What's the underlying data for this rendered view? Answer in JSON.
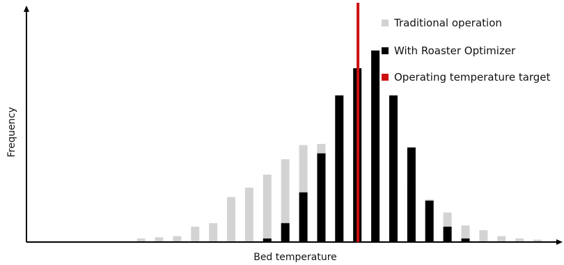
{
  "chart_data": {
    "type": "bar",
    "title": "",
    "xlabel": "Bed temperature",
    "ylabel": "Frequency",
    "ylim": [
      0,
      100
    ],
    "x_positions": 27,
    "series": [
      {
        "name": "Traditional operation",
        "color": "#d3d3d3",
        "values": [
          0,
          0,
          0,
          1.5,
          2,
          2.5,
          6.5,
          8,
          19,
          23,
          28.5,
          35,
          41,
          41.5,
          37.5,
          37.5,
          34,
          30,
          25.5,
          18,
          12.5,
          7,
          5,
          2.5,
          1.5,
          1,
          0.5
        ]
      },
      {
        "name": "With Roaster Optimizer",
        "color": "#000000",
        "values": [
          0,
          0,
          0,
          0,
          0,
          0,
          0,
          0,
          0,
          1.5,
          8,
          21,
          37.5,
          62,
          73.5,
          81,
          62,
          40,
          17.5,
          6.5,
          1.5,
          0,
          0,
          0,
          0,
          0,
          0
        ]
      }
    ],
    "target": {
      "name": "Operating temperature target",
      "color": "#cc1111",
      "x": 15.0
    },
    "legend_position": "top-right",
    "grid": false
  }
}
